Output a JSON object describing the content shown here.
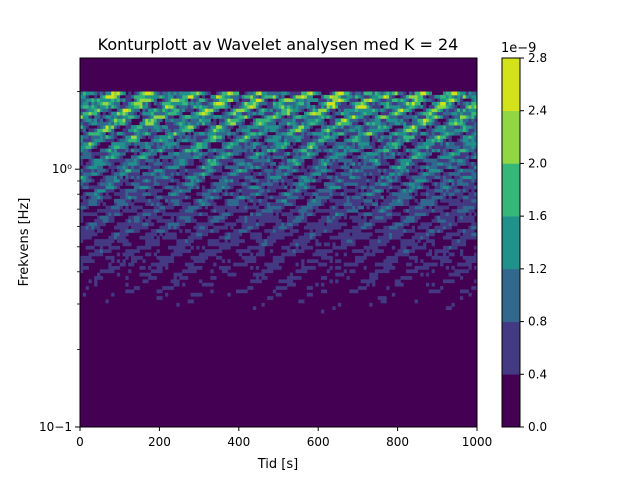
{
  "chart_data": {
    "type": "heatmap",
    "subtype": "filled-contour",
    "title": "Konturplott av Wavelet analysen med K = 24",
    "xlabel": "Tid [s]",
    "ylabel": "Frekvens [Hz]",
    "xlim": [
      0,
      1000
    ],
    "ylim": [
      0.1,
      2.7
    ],
    "yscale": "log",
    "x_ticks": [
      0,
      200,
      400,
      600,
      800,
      1000
    ],
    "x_tick_labels": [
      "0",
      "200",
      "400",
      "600",
      "800",
      "1000"
    ],
    "y_major_ticks": [
      0.1,
      1.0
    ],
    "y_tick_labels": [
      "10−1",
      "10⁰"
    ],
    "data_top_frequency": 2.0,
    "colorbar": {
      "levels": [
        0.0,
        0.4,
        0.8,
        1.2,
        1.6,
        2.0,
        2.4,
        2.8
      ],
      "tick_labels": [
        "0.0",
        "0.4",
        "0.8",
        "1.2",
        "1.6",
        "2.0",
        "2.4",
        "2.8"
      ],
      "offset_label": "1e−9",
      "colors": [
        "#440154",
        "#443983",
        "#31688e",
        "#21918c",
        "#35b779",
        "#90d743",
        "#d4e21a"
      ]
    },
    "level_description": "Power is highest (up to 2.8e-9) near 1-2 Hz, decreasing toward low frequencies where values are mostly below 0.4e-9; no data above 2 Hz."
  }
}
